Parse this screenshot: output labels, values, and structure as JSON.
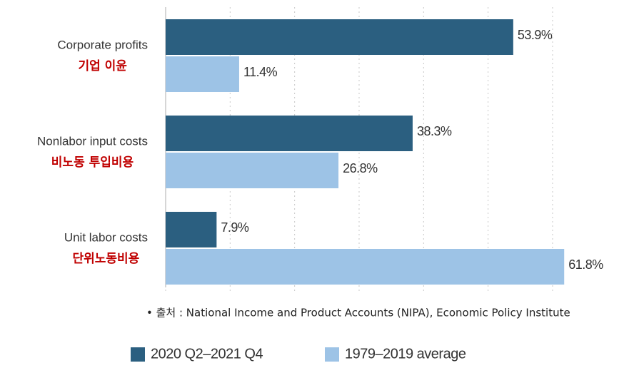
{
  "chart_data": {
    "type": "bar",
    "orientation": "horizontal",
    "categories": [
      "Corporate profits",
      "Nonlabor input costs",
      "Unit labor costs"
    ],
    "categories_ko": [
      "기업 이윤",
      "비노동 투입비용",
      "단위노동비용"
    ],
    "series": [
      {
        "name": "2020 Q2–2021 Q4",
        "color": "#2b5f80",
        "values": [
          53.9,
          38.3,
          7.9
        ],
        "value_labels": [
          "53.9%",
          "38.3%",
          "7.9%"
        ]
      },
      {
        "name": "1979–2019 average",
        "color": "#9dc3e6",
        "values": [
          11.4,
          26.8,
          61.8
        ],
        "value_labels": [
          "11.4%",
          "26.8%",
          "61.8%"
        ]
      }
    ],
    "xlim": [
      0,
      70.3
    ],
    "xticks": [
      0,
      10,
      20,
      30,
      40,
      50,
      60
    ],
    "grid": true,
    "source": "• 출처 : National Income and Product Accounts (NIPA), Economic Policy Institute"
  }
}
